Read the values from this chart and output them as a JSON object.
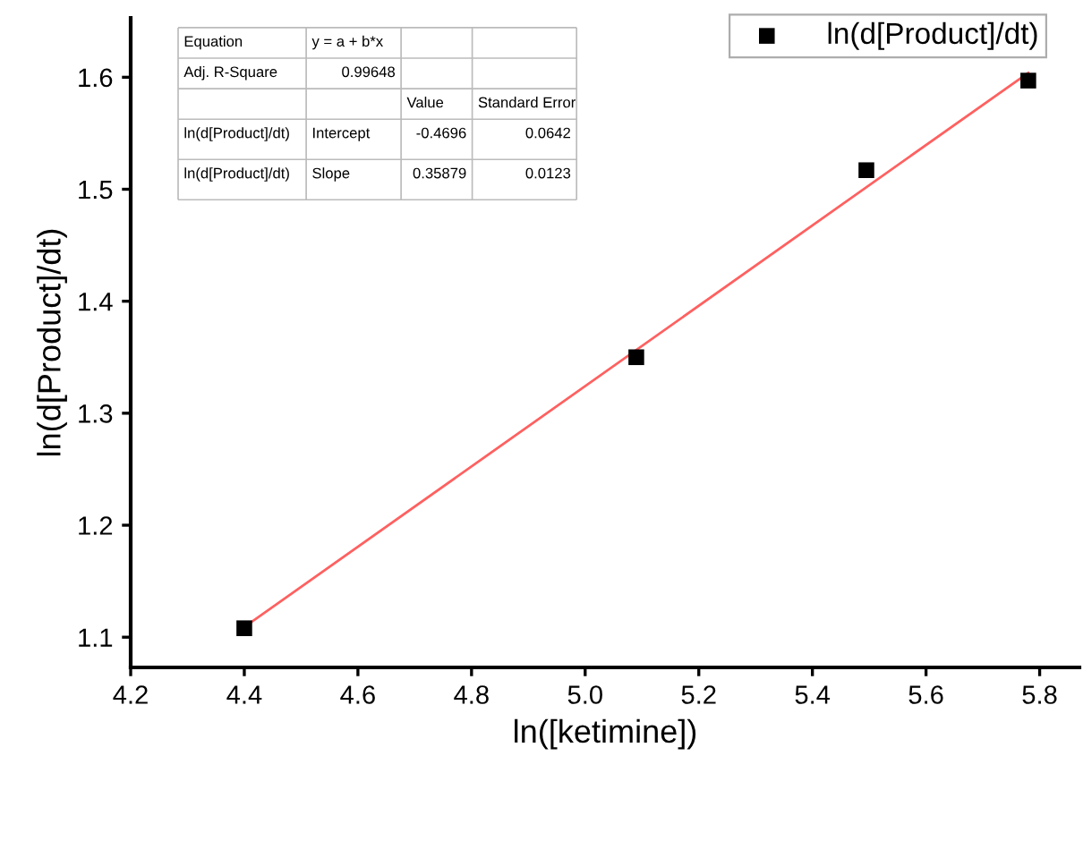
{
  "chart_data": {
    "type": "scatter",
    "xlabel": "ln([ketimine])",
    "ylabel": "ln(d[Product]/dt)",
    "series": [
      {
        "name": "ln(d[Product]/dt)",
        "color": "#000000",
        "marker": "square",
        "x": [
          4.4,
          5.09,
          5.495,
          5.78
        ],
        "values": [
          1.108,
          1.35,
          1.517,
          1.597
        ]
      },
      {
        "type": "line",
        "color": "#ff6060",
        "x": [
          4.4,
          5.78
        ],
        "values": [
          1.109,
          1.604
        ]
      }
    ],
    "xlim": [
      4.2,
      5.87
    ],
    "ylim": [
      1.073,
      1.653
    ],
    "xticks": [
      4.2,
      4.4,
      4.6,
      4.8,
      {
        "value": 5.0,
        "label": "5.0"
      },
      5.2,
      5.4,
      5.6,
      5.8
    ],
    "yticks": [
      1.1,
      1.2,
      1.3,
      1.4,
      1.5,
      1.6
    ],
    "grid": false,
    "legend": "top right",
    "annotations": [
      "Equation",
      "y = a + b*x",
      "Adj. R-Square",
      "0.99648",
      "Value",
      "Standard Error",
      "ln(d[Product]/dt)",
      "Intercept",
      "-0.4696",
      "0.0642",
      "ln(d[Product]/dt)",
      "Slope",
      "0.35879",
      "0.0123"
    ]
  }
}
